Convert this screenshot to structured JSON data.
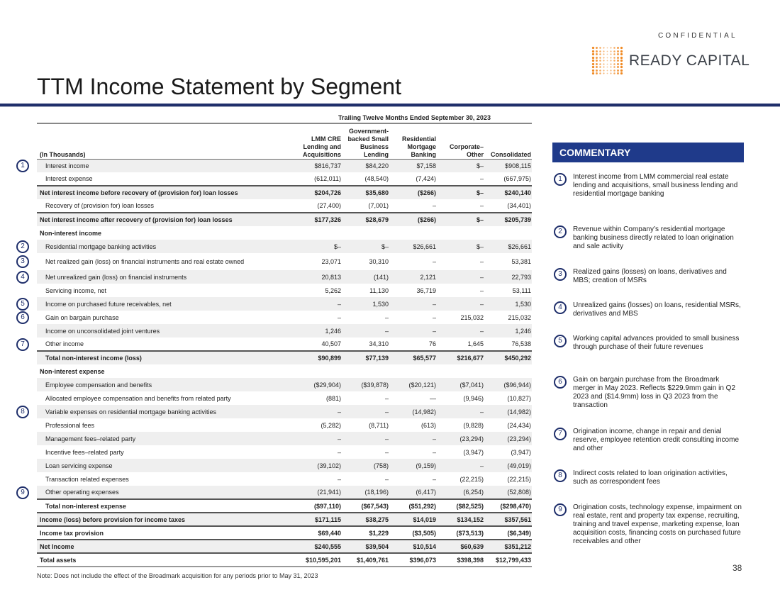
{
  "header": {
    "confidential": "CONFIDENTIAL",
    "logo_text": "READY CAPITAL",
    "title": "TTM Income Statement by Segment",
    "brand_colors": {
      "navy": "#1f2f6b",
      "orange": "#f08a24"
    }
  },
  "table": {
    "period": "Trailing Twelve Months Ended September 30, 2023",
    "columns": [
      "(In Thousands)",
      "LMM CRE Lending and Acquisitions",
      "Government-backed Small Business Lending",
      "Residential Mortgage Banking",
      "Corporate–Other",
      "Consolidated"
    ],
    "rows": [
      {
        "label": "Interest income",
        "values": [
          "$816,737",
          "$84,220",
          "$7,158",
          "$–",
          "$908,115"
        ],
        "badge": "1"
      },
      {
        "label": "Interest expense",
        "values": [
          "(612,011)",
          "(48,540)",
          "(7,424)",
          "–",
          "(667,975)"
        ]
      },
      {
        "label": "Net interest income before recovery of (provision for) loan losses",
        "values": [
          "$204,726",
          "$35,680",
          "($266)",
          "$–",
          "$240,140"
        ]
      },
      {
        "label": "Recovery of (provision for) loan losses",
        "values": [
          "(27,400)",
          "(7,001)",
          "–",
          "–",
          "(34,401)"
        ]
      },
      {
        "label": "Net interest income after recovery of (provision for) loan losses",
        "values": [
          "$177,326",
          "$28,679",
          "($266)",
          "$–",
          "$205,739"
        ]
      },
      {
        "label": "Non-interest income",
        "values": [
          "",
          "",
          "",
          "",
          ""
        ]
      },
      {
        "label": "Residential mortgage banking activities",
        "values": [
          "$–",
          "$–",
          "$26,661",
          "$–",
          "$26,661"
        ],
        "badge": "2"
      },
      {
        "label": "Net realized gain (loss) on financial instruments and real estate owned",
        "values": [
          "23,071",
          "30,310",
          "–",
          "–",
          "53,381"
        ],
        "badge": "3"
      },
      {
        "label": "Net unrealized gain (loss) on financial instruments",
        "values": [
          "20,813",
          "(141)",
          "2,121",
          "–",
          "22,793"
        ],
        "badge": "4"
      },
      {
        "label": "Servicing income, net",
        "values": [
          "5,262",
          "11,130",
          "36,719",
          "–",
          "53,111"
        ]
      },
      {
        "label": "Income on purchased future receivables, net",
        "values": [
          "–",
          "1,530",
          "–",
          "–",
          "1,530"
        ],
        "badge": "5"
      },
      {
        "label": "Gain on bargain purchase",
        "values": [
          "–",
          "–",
          "–",
          "215,032",
          "215,032"
        ],
        "badge": "6"
      },
      {
        "label": "Income on unconsolidated joint ventures",
        "values": [
          "1,246",
          "–",
          "–",
          "–",
          "1,246"
        ]
      },
      {
        "label": "Other income",
        "values": [
          "40,507",
          "34,310",
          "76",
          "1,645",
          "76,538"
        ],
        "badge": "7"
      },
      {
        "label": "Total non-interest income (loss)",
        "values": [
          "$90,899",
          "$77,139",
          "$65,577",
          "$216,677",
          "$450,292"
        ]
      },
      {
        "label": "Non-interest expense",
        "values": [
          "",
          "",
          "",
          "",
          ""
        ]
      },
      {
        "label": "Employee compensation and benefits",
        "values": [
          "($29,904)",
          "($39,878)",
          "($20,121)",
          "($7,041)",
          "($96,944)"
        ]
      },
      {
        "label": "Allocated employee compensation and benefits from related party",
        "values": [
          "(881)",
          "–",
          "—",
          "(9,946)",
          "(10,827)"
        ]
      },
      {
        "label": "Variable expenses on residential mortgage banking activities",
        "values": [
          "–",
          "–",
          "(14,982)",
          "–",
          "(14,982)"
        ],
        "badge": "8"
      },
      {
        "label": "Professional fees",
        "values": [
          "(5,282)",
          "(8,711)",
          "(613)",
          "(9,828)",
          "(24,434)"
        ]
      },
      {
        "label": "Management fees–related party",
        "values": [
          "–",
          "–",
          "–",
          "(23,294)",
          "(23,294)"
        ]
      },
      {
        "label": "Incentive fees–related party",
        "values": [
          "–",
          "–",
          "–",
          "(3,947)",
          "(3,947)"
        ]
      },
      {
        "label": "Loan servicing expense",
        "values": [
          "(39,102)",
          "(758)",
          "(9,159)",
          "–",
          "(49,019)"
        ]
      },
      {
        "label": "Transaction related expenses",
        "values": [
          "–",
          "–",
          "–",
          "(22,215)",
          "(22,215)"
        ]
      },
      {
        "label": "Other operating expenses",
        "values": [
          "(21,941)",
          "(18,196)",
          "(6,417)",
          "(6,254)",
          "(52,808)"
        ],
        "badge": "9"
      },
      {
        "label": "Total non-interest expense",
        "values": [
          "($97,110)",
          "($67,543)",
          "($51,292)",
          "($82,525)",
          "($298,470)"
        ]
      },
      {
        "label": "Income (loss) before provision for income taxes",
        "values": [
          "$171,115",
          "$38,275",
          "$14,019",
          "$134,152",
          "$357,561"
        ]
      },
      {
        "label": "Income tax provision",
        "values": [
          "$69,440",
          "$1,229",
          "($3,505)",
          "($73,513)",
          "($6,349)"
        ]
      },
      {
        "label": "Net Income",
        "values": [
          "$240,555",
          "$39,504",
          "$10,514",
          "$60,639",
          "$351,212"
        ]
      },
      {
        "label": "Total assets",
        "values": [
          "$10,595,201",
          "$1,409,761",
          "$396,073",
          "$398,398",
          "$12,799,433"
        ]
      }
    ],
    "note": "Note: Does not include the effect of the Broadmark acquisition for any periods prior to May 31, 2023"
  },
  "commentary": {
    "title": "COMMENTARY",
    "items": [
      {
        "num": "1",
        "text": "Interest income from LMM commercial real estate lending and acquisitions, small business lending and residential mortgage banking"
      },
      {
        "num": "2",
        "text": "Revenue within Company’s residential mortgage banking business directly related to loan origination and sale activity"
      },
      {
        "num": "3",
        "text": "Realized gains (losses) on loans, derivatives and MBS; creation of MSRs"
      },
      {
        "num": "4",
        "text": "Unrealized gains (losses) on loans, residential MSRs, derivatives and MBS"
      },
      {
        "num": "5",
        "text": "Working capital advances provided to small business through purchase of their future revenues"
      },
      {
        "num": "6",
        "text": "Gain on bargain purchase from the Broadmark merger in May 2023. Reflects $229.9mm gain in Q2 2023 and ($14.9mm) loss in Q3 2023 from the transaction"
      },
      {
        "num": "7",
        "text": "Origination income, change in repair and denial reserve, employee retention credit consulting income and other"
      },
      {
        "num": "8",
        "text": "Indirect costs related to loan origination activities, such as correspondent fees"
      },
      {
        "num": "9",
        "text": "Origination costs, technology expense, impairment on real estate, rent and property tax expense, recruiting, training and travel expense, marketing expense, loan acquisition costs, financing costs on purchased future receivables and other"
      }
    ]
  },
  "page_number": "38"
}
